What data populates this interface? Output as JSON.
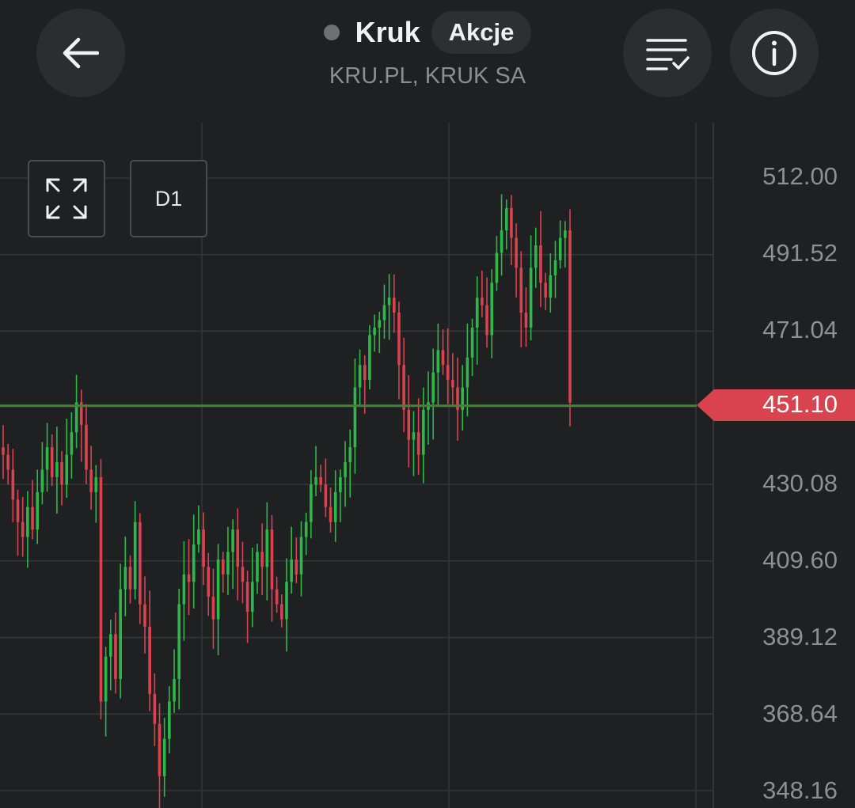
{
  "header": {
    "title": "Kruk",
    "badge": "Akcje",
    "subtitle": "KRU.PL, KRUK SA",
    "status_color": "#6f7074"
  },
  "icons": {
    "back": "arrow-left-icon",
    "filter": "sort-check-icon",
    "info": "info-icon",
    "expand": "expand-icon"
  },
  "toolbar": {
    "timeframe": "D1"
  },
  "chart_data": {
    "type": "candlestick",
    "yaxis_ticks": [
      "512.00",
      "491.52",
      "471.04",
      "451.10",
      "430.08",
      "409.60",
      "389.12",
      "368.64",
      "348.16"
    ],
    "tick_values": [
      512.0,
      491.52,
      471.04,
      430.08,
      409.6,
      389.12,
      368.64,
      348.16
    ],
    "ylim": [
      348.16,
      512.0
    ],
    "current_price": "451.10",
    "current_value": 451.1,
    "up_color": "#2eb84a",
    "down_color": "#d8434f",
    "price_line_color": "#4a7f3f",
    "grid": true,
    "closes": [
      438,
      434,
      426,
      420,
      416,
      424,
      418,
      428,
      434,
      440,
      432,
      436,
      430,
      438,
      444,
      452,
      446,
      434,
      428,
      432,
      372,
      384,
      390,
      378,
      402,
      408,
      402,
      420,
      398,
      392,
      374,
      366,
      352,
      362,
      372,
      378,
      398,
      406,
      404,
      414,
      418,
      408,
      400,
      394,
      410,
      406,
      412,
      418,
      408,
      404,
      396,
      404,
      412,
      408,
      418,
      402,
      398,
      394,
      404,
      410,
      406,
      416,
      420,
      430,
      432,
      430,
      424,
      420,
      428,
      432,
      436,
      440,
      456,
      462,
      458,
      470,
      472,
      474,
      478,
      480,
      476,
      462,
      450,
      442,
      444,
      438,
      450,
      452,
      460,
      466,
      462,
      458,
      456,
      450,
      456,
      464,
      472,
      480,
      478,
      470,
      484,
      492,
      498,
      504,
      496,
      488,
      476,
      472,
      488,
      494,
      484,
      480,
      486,
      490,
      496,
      498,
      452
    ]
  }
}
